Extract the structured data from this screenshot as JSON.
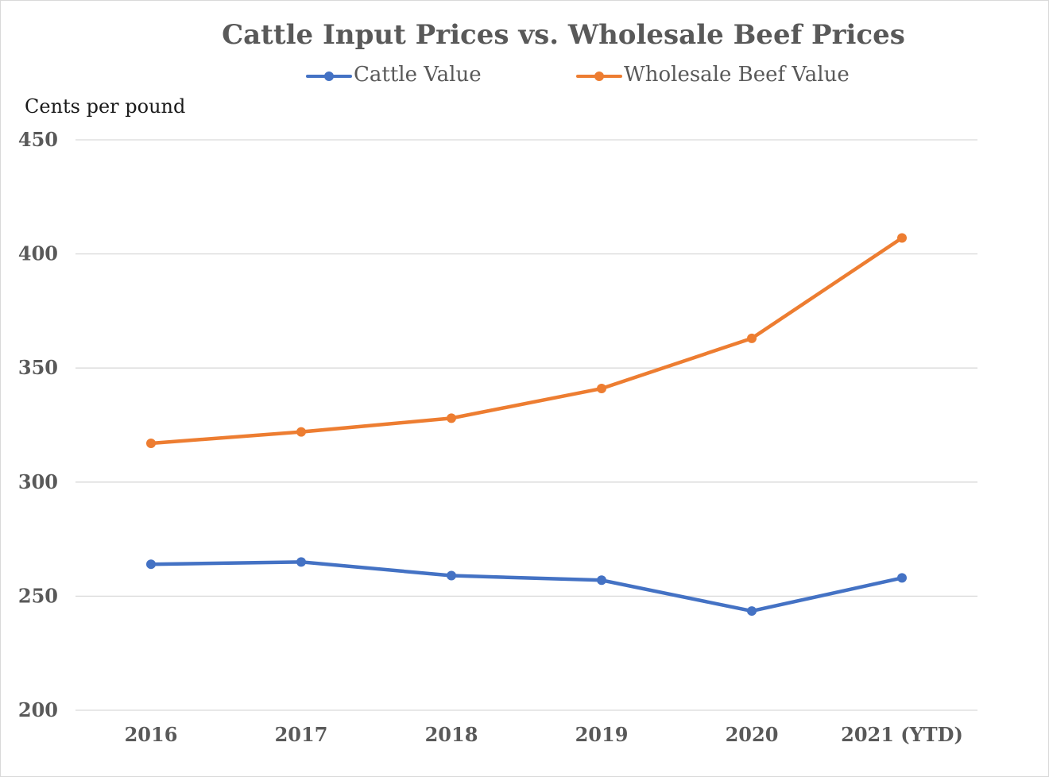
{
  "chart_data": {
    "type": "line",
    "title": "Cattle Input Prices vs. Wholesale Beef Prices",
    "ylabel": "Cents per pound",
    "xlabel": "",
    "categories": [
      "2016",
      "2017",
      "2018",
      "2019",
      "2020",
      "2021 (YTD)"
    ],
    "ylim": [
      200,
      450
    ],
    "yticks": [
      200,
      250,
      300,
      350,
      400,
      450
    ],
    "ytick_labels": [
      "200",
      "250",
      "300",
      "350",
      "400",
      "450"
    ],
    "grid": true,
    "legend_position": "top-center",
    "series": [
      {
        "name": "Cattle Value",
        "color": "#4472c4",
        "values": [
          264,
          265,
          259,
          257,
          243.5,
          258
        ]
      },
      {
        "name": "Wholesale Beef Value",
        "color": "#ed7d31",
        "values": [
          317,
          322,
          328,
          341,
          363,
          407
        ]
      }
    ]
  }
}
